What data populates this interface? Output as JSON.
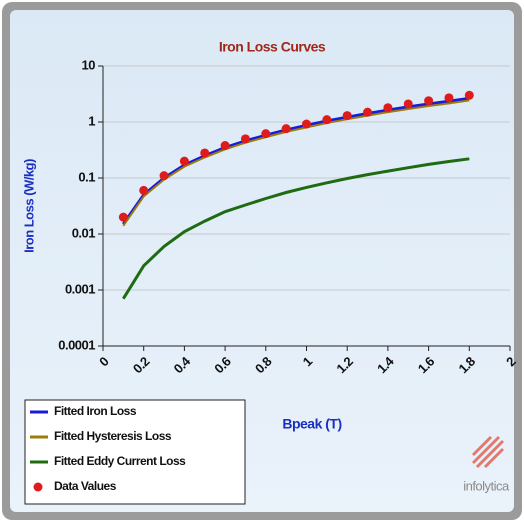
{
  "chart_data": {
    "type": "line",
    "title": "Iron Loss Curves",
    "x_label": "Bpeak (T)",
    "y_label": "Iron Loss (W/kg)",
    "x": [
      0.1,
      0.2,
      0.3,
      0.4,
      0.5,
      0.6,
      0.7,
      0.8,
      0.9,
      1.0,
      1.1,
      1.2,
      1.3,
      1.4,
      1.5,
      1.6,
      1.7,
      1.8
    ],
    "series": [
      {
        "name": "Fitted Iron Loss",
        "color": "#1a1adf",
        "mode": "line",
        "values": [
          0.015,
          0.05,
          0.1,
          0.17,
          0.25,
          0.35,
          0.46,
          0.58,
          0.72,
          0.87,
          1.04,
          1.22,
          1.42,
          1.63,
          1.86,
          2.1,
          2.35,
          2.65
        ]
      },
      {
        "name": "Fitted Hysteresis Loss",
        "color": "#9a7d0a",
        "mode": "line",
        "values": [
          0.014,
          0.047,
          0.094,
          0.16,
          0.233,
          0.325,
          0.427,
          0.537,
          0.665,
          0.802,
          0.958,
          1.12,
          1.3,
          1.5,
          1.71,
          1.93,
          2.15,
          2.43
        ]
      },
      {
        "name": "Fitted Eddy Current Loss",
        "color": "#1e6b12",
        "mode": "line",
        "values": [
          0.0007,
          0.0027,
          0.006,
          0.011,
          0.017,
          0.025,
          0.033,
          0.043,
          0.055,
          0.068,
          0.082,
          0.098,
          0.115,
          0.133,
          0.153,
          0.175,
          0.197,
          0.22
        ]
      },
      {
        "name": "Data Values",
        "color": "#e01b1b",
        "mode": "markers",
        "values": [
          0.02,
          0.06,
          0.11,
          0.2,
          0.28,
          0.38,
          0.5,
          0.62,
          0.76,
          0.92,
          1.1,
          1.3,
          1.5,
          1.8,
          2.1,
          2.4,
          2.7,
          3.0
        ]
      }
    ],
    "xlim": [
      0,
      2
    ],
    "xticks": [
      0,
      0.2,
      0.4,
      0.6,
      0.8,
      1,
      1.2,
      1.4,
      1.6,
      1.8,
      2
    ],
    "ylim": [
      0.0001,
      10
    ],
    "yticks": [
      0.0001,
      0.001,
      0.01,
      0.1,
      1,
      10
    ],
    "y_scale": "log",
    "grid": true,
    "legend_position": "bottom-left",
    "logo": "infolytica"
  }
}
